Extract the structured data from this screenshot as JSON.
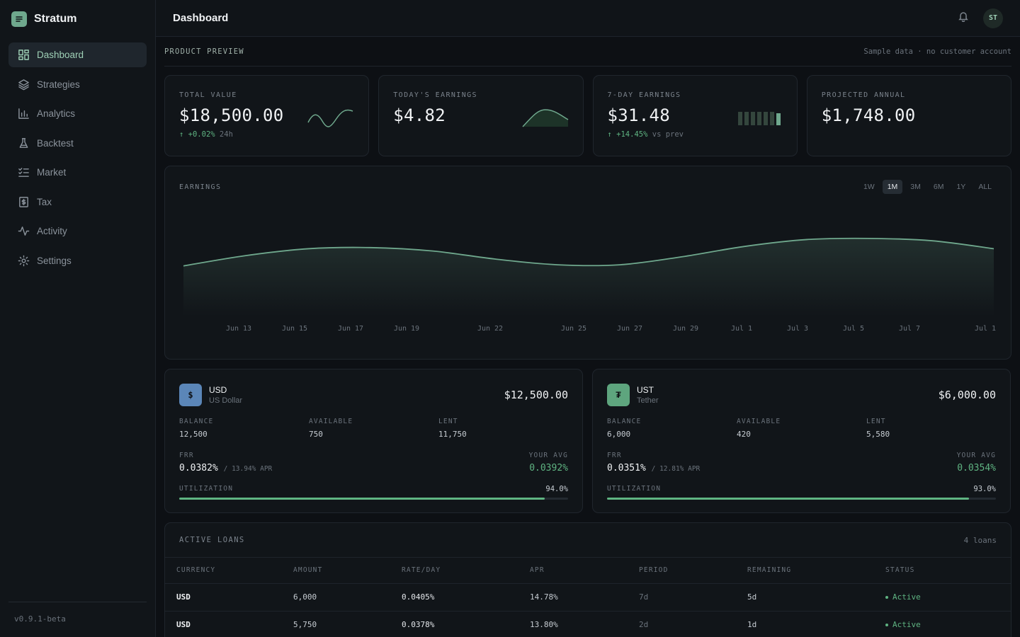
{
  "app": {
    "name": "Stratum",
    "version": "v0.9.1-beta"
  },
  "sidebar": {
    "items": [
      {
        "label": "Dashboard",
        "icon": "dashboard-icon",
        "active": true
      },
      {
        "label": "Strategies",
        "icon": "layers-icon"
      },
      {
        "label": "Analytics",
        "icon": "bar-chart-icon"
      },
      {
        "label": "Backtest",
        "icon": "flask-icon"
      },
      {
        "label": "Market",
        "icon": "list-checks-icon"
      },
      {
        "label": "Tax",
        "icon": "receipt-icon"
      },
      {
        "label": "Activity",
        "icon": "activity-icon"
      },
      {
        "label": "Settings",
        "icon": "gear-icon"
      }
    ]
  },
  "header": {
    "title": "Dashboard",
    "avatar_initials": "ST"
  },
  "preview": {
    "label": "PRODUCT PREVIEW",
    "note": "Sample data · no customer account"
  },
  "kpis": [
    {
      "label": "TOTAL VALUE",
      "value": "$18,500.00",
      "delta": "+0.02%",
      "delta_suffix": "24h"
    },
    {
      "label": "TODAY'S EARNINGS",
      "value": "$4.82",
      "delta": "",
      "delta_suffix": ""
    },
    {
      "label": "7-DAY EARNINGS",
      "value": "$31.48",
      "delta": "+14.45%",
      "delta_suffix": "vs prev"
    },
    {
      "label": "PROJECTED ANNUAL",
      "value": "$1,748.00",
      "delta": "",
      "delta_suffix": ""
    }
  ],
  "earnings": {
    "title": "EARNINGS",
    "ranges": [
      "1W",
      "1M",
      "3M",
      "6M",
      "1Y",
      "ALL"
    ],
    "active_range": "1M"
  },
  "chart_data": {
    "type": "area",
    "title": "EARNINGS",
    "x_ticks": [
      "Jun 13",
      "Jun 15",
      "Jun 17",
      "Jun 19",
      "Jun 22",
      "Jun 25",
      "Jun 27",
      "Jun 29",
      "Jul 1",
      "Jul 3",
      "Jul 5",
      "Jul 7",
      "Jul 1"
    ],
    "series": [
      {
        "values": [
          0.44,
          0.53,
          0.59,
          0.6,
          0.57,
          0.5,
          0.45,
          0.45,
          0.52,
          0.61,
          0.67,
          0.68,
          0.66,
          0.59
        ]
      }
    ],
    "grid": false,
    "line_color": "#6fa88d"
  },
  "currencies": [
    {
      "code": "USD",
      "name": "US Dollar",
      "symbol": "$",
      "total": "$12,500.00",
      "balance_label": "BALANCE",
      "balance": "12,500",
      "available_label": "AVAILABLE",
      "available": "750",
      "lent_label": "LENT",
      "lent": "11,750",
      "frr_label": "FRR",
      "frr": "0.0382%",
      "frr_apr": "/ 13.94% APR",
      "avg_label": "YOUR AVG",
      "avg": "0.0392%",
      "util_label": "UTILIZATION",
      "util": "94.0%",
      "util_fraction": 0.94
    },
    {
      "code": "UST",
      "name": "Tether",
      "symbol": "₮",
      "total": "$6,000.00",
      "balance_label": "BALANCE",
      "balance": "6,000",
      "available_label": "AVAILABLE",
      "available": "420",
      "lent_label": "LENT",
      "lent": "5,580",
      "frr_label": "FRR",
      "frr": "0.0351%",
      "frr_apr": "/ 12.81% APR",
      "avg_label": "YOUR AVG",
      "avg": "0.0354%",
      "util_label": "UTILIZATION",
      "util": "93.0%",
      "util_fraction": 0.93
    }
  ],
  "loans": {
    "title": "ACTIVE LOANS",
    "count": "4 loans",
    "columns": [
      "CURRENCY",
      "AMOUNT",
      "RATE/DAY",
      "APR",
      "PERIOD",
      "REMAINING",
      "STATUS"
    ],
    "rows": [
      [
        "USD",
        "6,000",
        "0.0405%",
        "14.78%",
        "7d",
        "5d",
        "Active"
      ],
      [
        "USD",
        "5,750",
        "0.0378%",
        "13.80%",
        "2d",
        "1d",
        "Active"
      ]
    ]
  }
}
